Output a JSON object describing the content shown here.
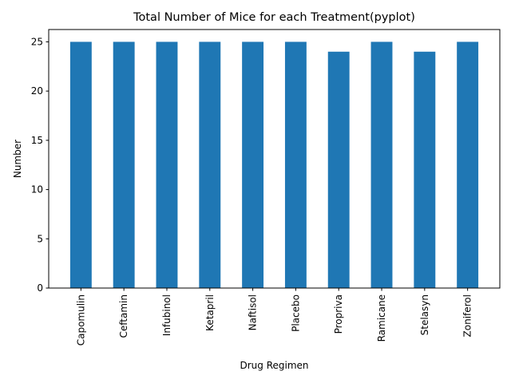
{
  "chart_data": {
    "type": "bar",
    "title": "Total Number of Mice for each Treatment(pyplot)",
    "xlabel": "Drug Regimen",
    "ylabel": "Number",
    "categories": [
      "Capomulin",
      "Ceftamin",
      "Infubinol",
      "Ketapril",
      "Naftisol",
      "Placebo",
      "Propriva",
      "Ramicane",
      "Stelasyn",
      "Zoniferol"
    ],
    "values": [
      25,
      25,
      25,
      25,
      25,
      25,
      24,
      25,
      24,
      25
    ],
    "ylim": [
      0,
      26.25
    ],
    "yticks": [
      0,
      5,
      10,
      15,
      20,
      25
    ],
    "bar_color": "#1f77b4",
    "grid": false,
    "legend": "none"
  }
}
